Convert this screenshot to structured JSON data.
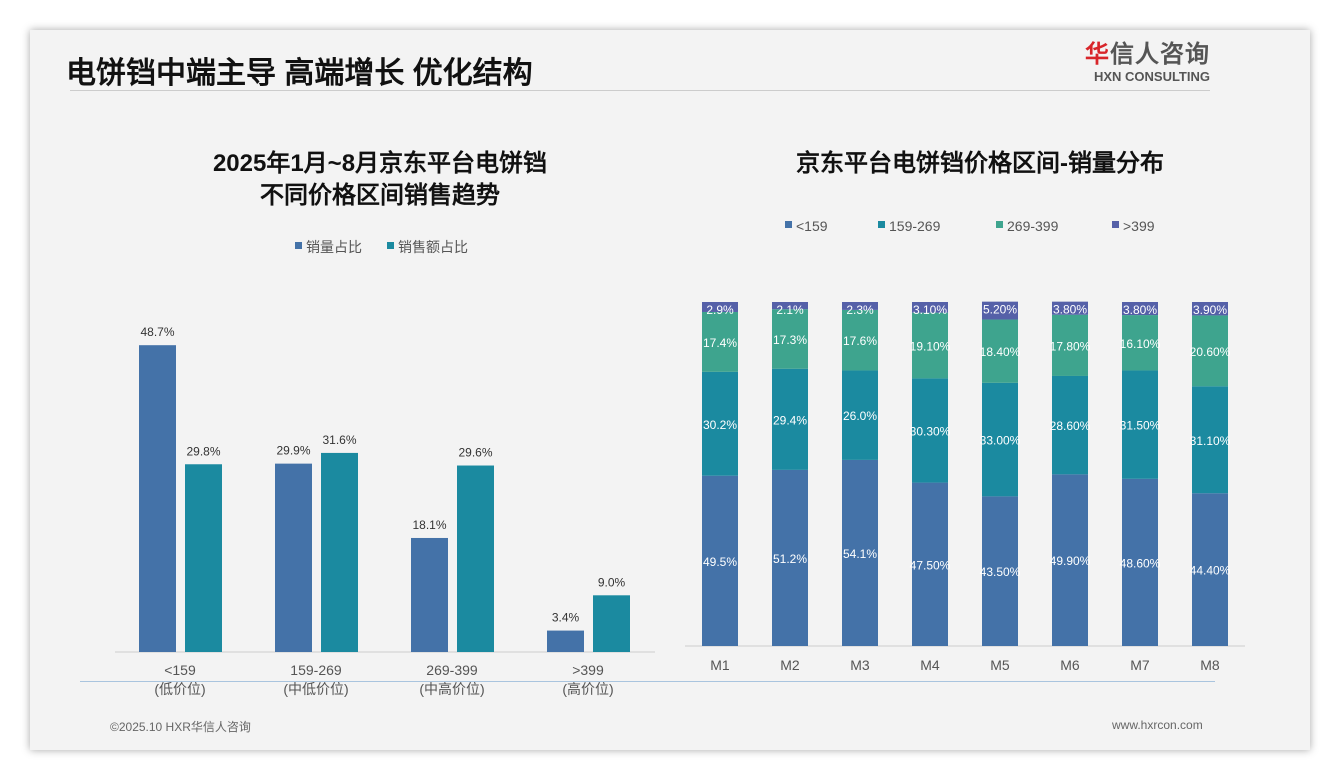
{
  "title": "电饼铛中端主导 高端增长 优化结构",
  "logo": {
    "cn_red": "华",
    "cn": "信人咨询",
    "en": "HXN CONSULTING"
  },
  "footer": {
    "left": "©2025.10 HXR华信人咨询",
    "right": "www.hxrcon.com"
  },
  "colors": {
    "blue": "#4472a8",
    "teal": "#1b8aa0",
    "green": "#3ea48e",
    "purple": "#5560a8"
  },
  "chart_data": [
    {
      "type": "bar",
      "title_line1": "2025年1月~8月京东平台电饼铛",
      "title_line2": "不同价格区间销售趋势",
      "categories": [
        "<159",
        "159-269",
        "269-399",
        ">399"
      ],
      "subcategories": [
        "(低价位)",
        "(中低价位)",
        "(中高价位)",
        "(高价位)"
      ],
      "series": [
        {
          "name": "销量占比",
          "values": [
            48.7,
            29.9,
            18.1,
            3.4
          ],
          "labels": [
            "48.7%",
            "29.9%",
            "18.1%",
            "3.4%"
          ]
        },
        {
          "name": "销售额占比",
          "values": [
            29.8,
            31.6,
            29.6,
            9.0
          ],
          "labels": [
            "29.8%",
            "31.6%",
            "29.6%",
            "9.0%"
          ]
        }
      ],
      "ylim": [
        0,
        55
      ],
      "legend": "top"
    },
    {
      "type": "bar",
      "stacked": true,
      "title": "京东平台电饼铛价格区间-销量分布",
      "categories": [
        "M1",
        "M2",
        "M3",
        "M4",
        "M5",
        "M6",
        "M7",
        "M8"
      ],
      "series": [
        {
          "name": "<159",
          "values": [
            49.5,
            51.2,
            54.1,
            47.5,
            43.5,
            49.9,
            48.6,
            44.4
          ],
          "labels": [
            "49.5%",
            "51.2%",
            "54.1%",
            "47.50%",
            "43.50%",
            "49.90%",
            "48.60%",
            "44.40%"
          ]
        },
        {
          "name": "159-269",
          "values": [
            30.2,
            29.4,
            26.0,
            30.3,
            33.0,
            28.6,
            31.5,
            31.1
          ],
          "labels": [
            "30.2%",
            "29.4%",
            "26.0%",
            "30.30%",
            "33.00%",
            "28.60%",
            "31.50%",
            "31.10%"
          ]
        },
        {
          "name": "269-399",
          "values": [
            17.4,
            17.3,
            17.6,
            19.1,
            18.4,
            17.8,
            16.1,
            20.6
          ],
          "labels": [
            "17.4%",
            "17.3%",
            "17.6%",
            "19.10%",
            "18.40%",
            "17.80%",
            "16.10%",
            "20.60%"
          ]
        },
        {
          "name": ">399",
          "values": [
            2.9,
            2.1,
            2.3,
            3.1,
            5.2,
            3.8,
            3.8,
            3.9
          ],
          "labels": [
            "2.9%",
            "2.1%",
            "2.3%",
            "3.10%",
            "5.20%",
            "3.80%",
            "3.80%",
            "3.90%"
          ]
        }
      ],
      "ylim": [
        0,
        100
      ],
      "legend": "top"
    }
  ]
}
